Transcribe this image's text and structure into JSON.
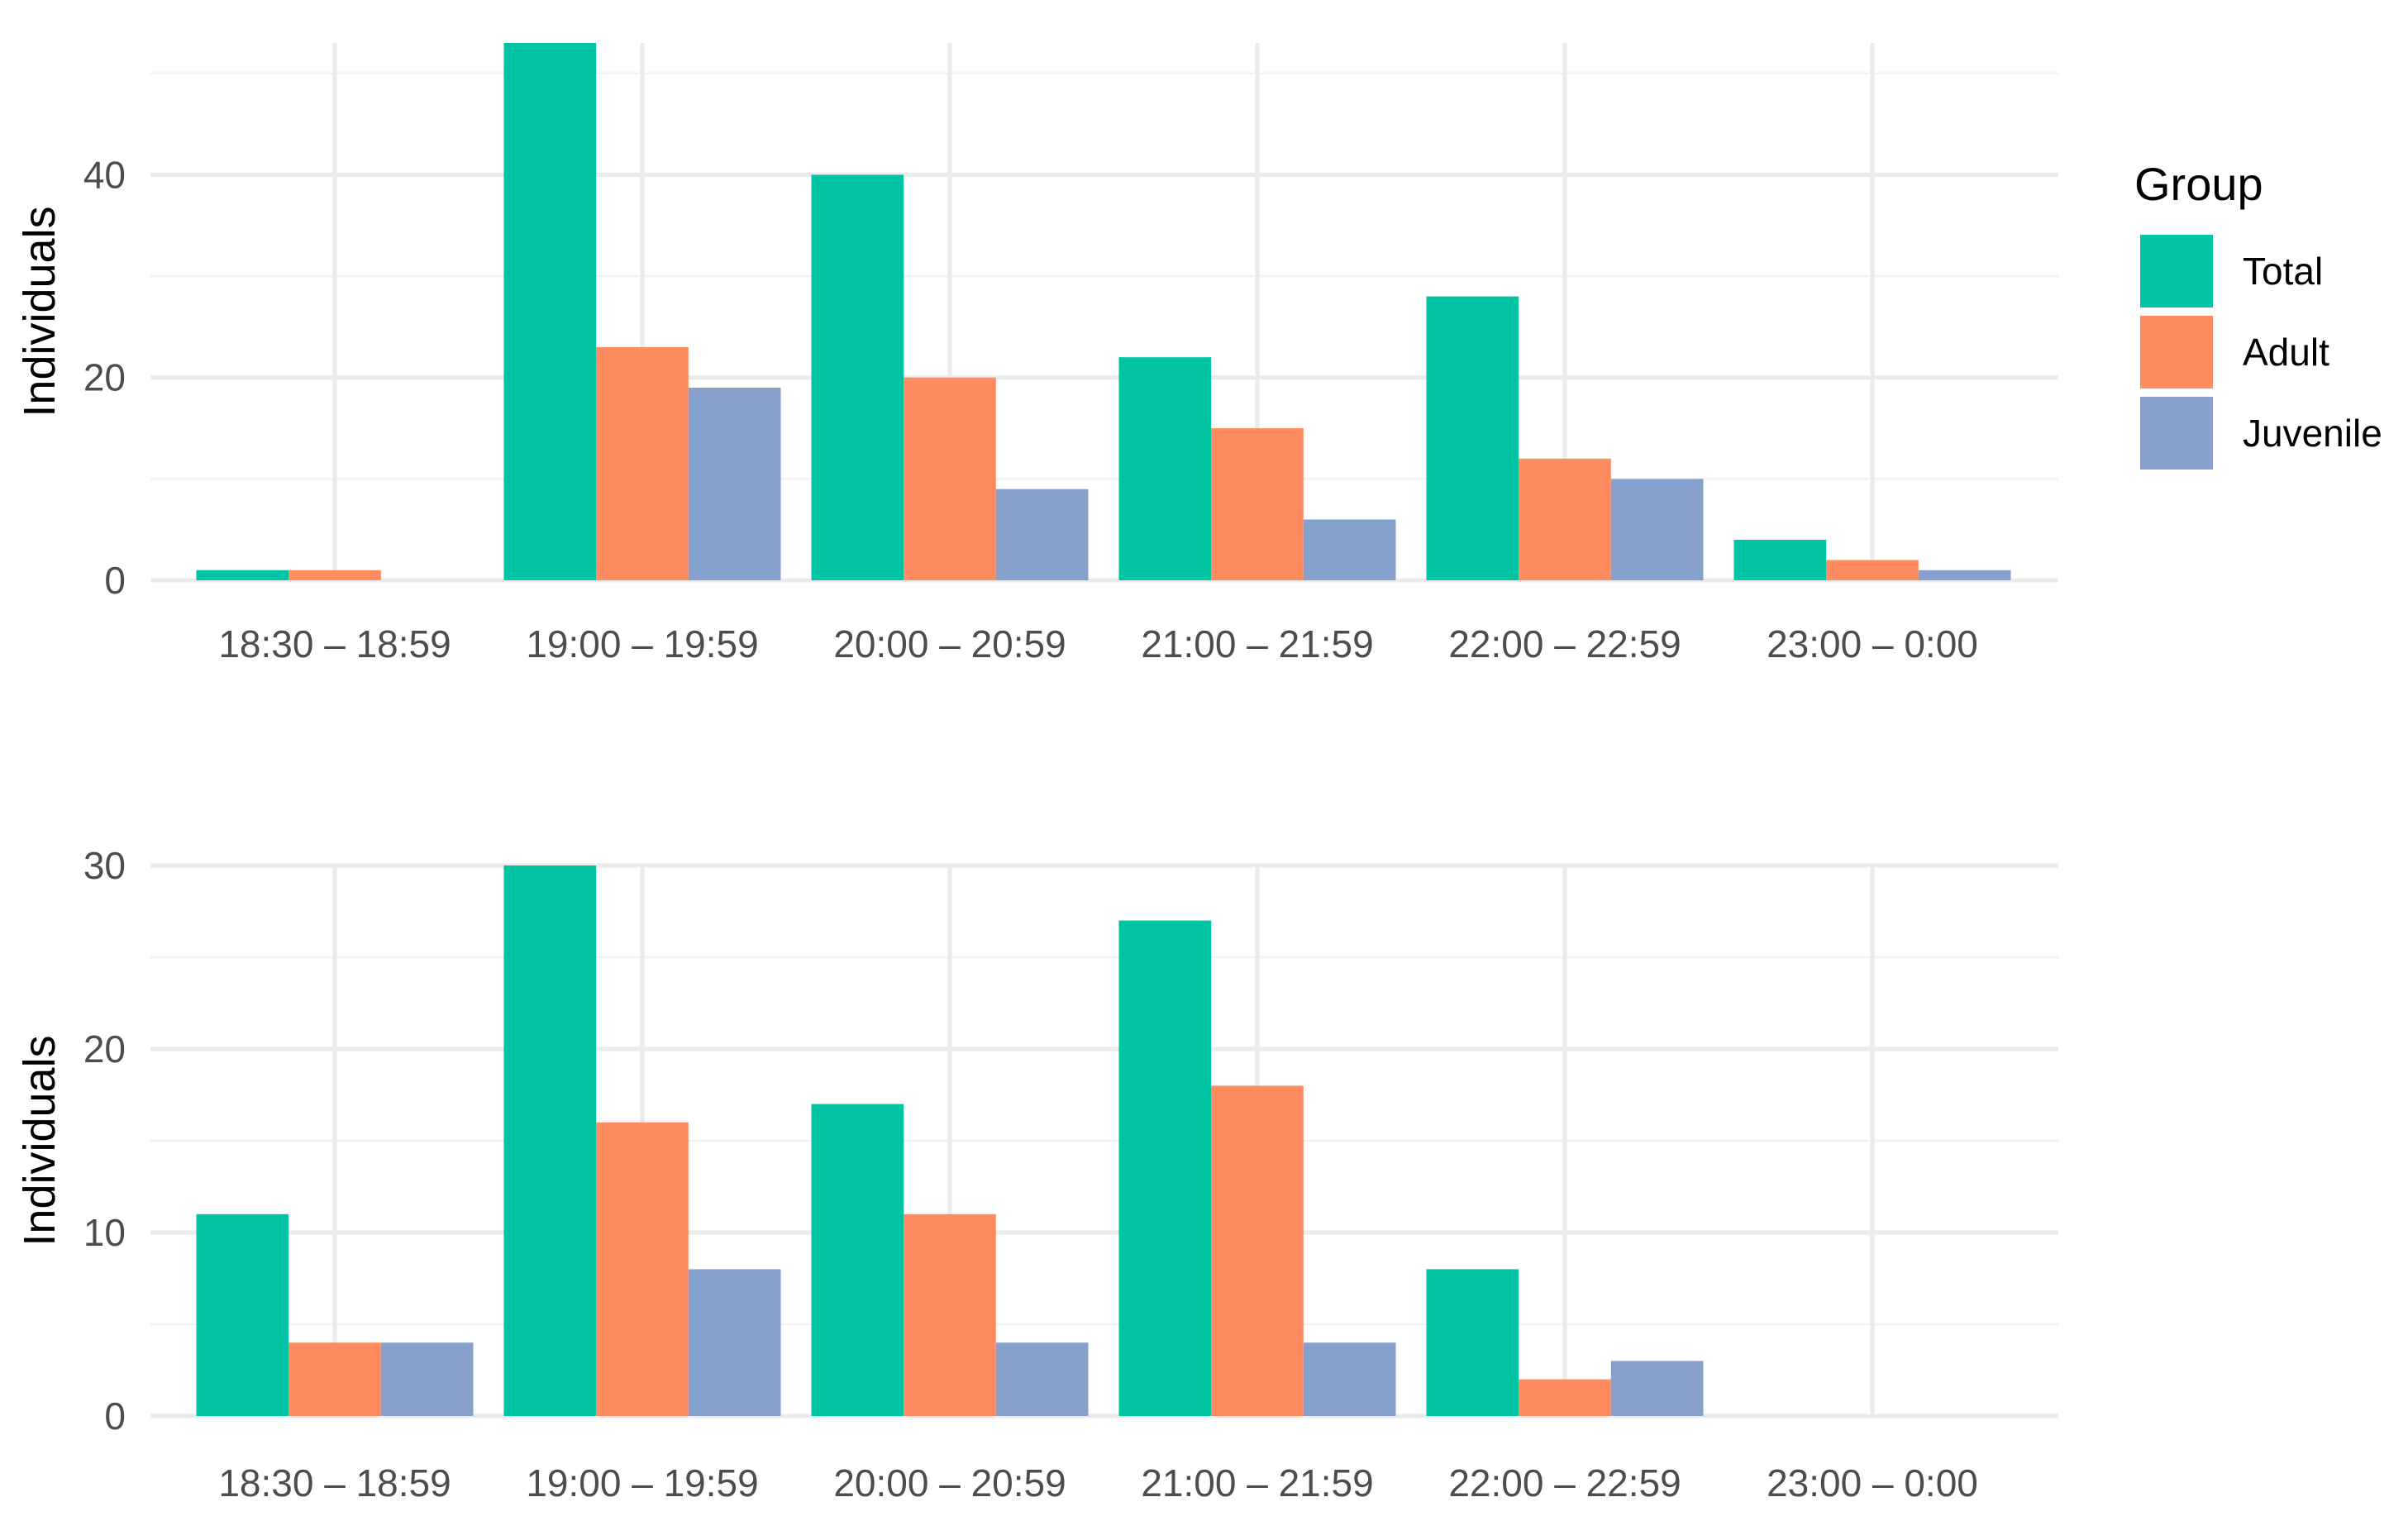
{
  "legend": {
    "title": "Group",
    "entries": [
      {
        "label": "Total",
        "color": "#00C4A4"
      },
      {
        "label": "Adult",
        "color": "#FF8C61"
      },
      {
        "label": "Juvenile",
        "color": "#86A1CD"
      }
    ]
  },
  "chart_data": [
    {
      "type": "bar",
      "title": "",
      "xlabel": "",
      "ylabel": "Individuals",
      "ylim": [
        0,
        53
      ],
      "yticks": [
        0,
        20,
        40
      ],
      "categories": [
        "18:30 – 18:59",
        "19:00 – 19:59",
        "20:00 – 20:59",
        "21:00 – 21:59",
        "22:00 – 22:59",
        "23:00 – 0:00"
      ],
      "series": [
        {
          "name": "Total",
          "color": "#00C4A4",
          "values": [
            1,
            53,
            40,
            22,
            28,
            4
          ]
        },
        {
          "name": "Adult",
          "color": "#FF8C61",
          "values": [
            1,
            23,
            20,
            15,
            12,
            2
          ]
        },
        {
          "name": "Juvenile",
          "color": "#86A1CD",
          "values": [
            0,
            19,
            9,
            6,
            10,
            1
          ]
        }
      ],
      "grid": true
    },
    {
      "type": "bar",
      "title": "",
      "xlabel": "",
      "ylabel": "Individuals",
      "ylim": [
        0,
        30
      ],
      "yticks": [
        0,
        10,
        20,
        30
      ],
      "categories": [
        "18:30 – 18:59",
        "19:00 – 19:59",
        "20:00 – 20:59",
        "21:00 – 21:59",
        "22:00 – 22:59",
        "23:00 – 0:00"
      ],
      "series": [
        {
          "name": "Total",
          "color": "#00C4A4",
          "values": [
            11,
            30,
            17,
            27,
            8,
            0
          ]
        },
        {
          "name": "Adult",
          "color": "#FF8C61",
          "values": [
            4,
            16,
            11,
            18,
            2,
            0
          ]
        },
        {
          "name": "Juvenile",
          "color": "#86A1CD",
          "values": [
            4,
            8,
            4,
            4,
            3,
            0
          ]
        }
      ],
      "grid": true
    }
  ]
}
